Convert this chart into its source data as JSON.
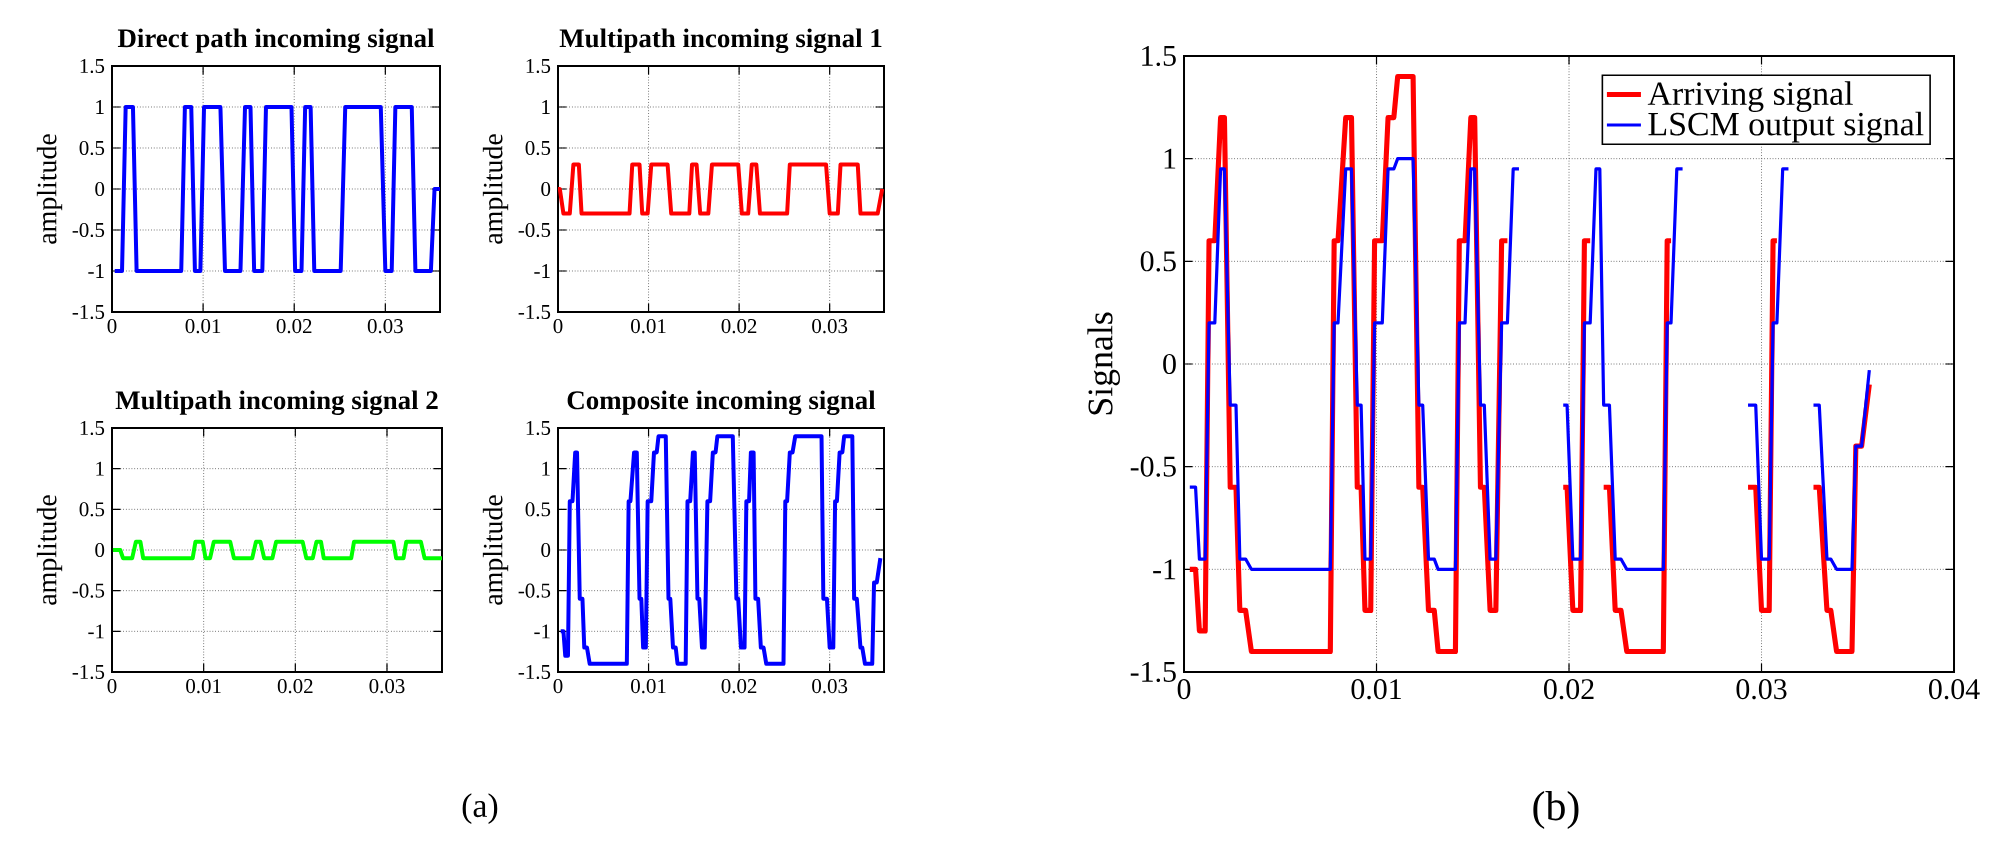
{
  "chart_data": [
    {
      "type": "line",
      "title": "Direct path incoming signal",
      "ylabel": "amplitude",
      "xlim": [
        0,
        0.036
      ],
      "xticks": [
        0,
        0.01,
        0.02,
        0.03
      ],
      "ylim": [
        -1.5,
        1.5
      ],
      "yticks": [
        -1.5,
        -1,
        -0.5,
        0,
        0.5,
        1,
        1.5
      ],
      "grid": true,
      "series": [
        {
          "color": "#0000ff",
          "x": [
            0.0003,
            0.0011,
            0.0015,
            0.0023,
            0.0027,
            0.0076,
            0.008,
            0.0087,
            0.0091,
            0.0097,
            0.0101,
            0.0119,
            0.0124,
            0.0141,
            0.0146,
            0.0152,
            0.0156,
            0.0165,
            0.0169,
            0.0197,
            0.0201,
            0.0208,
            0.0212,
            0.0218,
            0.0222,
            0.0251,
            0.0256,
            0.0295,
            0.03,
            0.0307,
            0.0311,
            0.0329,
            0.0333,
            0.035,
            0.0354,
            0.036
          ],
          "values": [
            -1,
            -1,
            1,
            1,
            -1,
            -1,
            1,
            1,
            -1,
            -1,
            1,
            1,
            -1,
            -1,
            1,
            1,
            -1,
            -1,
            1,
            1,
            -1,
            -1,
            1,
            1,
            -1,
            -1,
            1,
            1,
            -1,
            -1,
            1,
            1,
            -1,
            -1,
            0,
            0
          ]
        }
      ]
    },
    {
      "type": "line",
      "title": "Multipath incoming signal 1",
      "ylabel": "amplitude",
      "xlim": [
        0,
        0.036
      ],
      "xticks": [
        0,
        0.01,
        0.02,
        0.03
      ],
      "ylim": [
        -1.5,
        1.5
      ],
      "yticks": [
        -1.5,
        -1,
        -0.5,
        0,
        0.5,
        1,
        1.5
      ],
      "grid": true,
      "series": [
        {
          "color": "#ff0000",
          "x": [
            0,
            0.0002,
            0.0006,
            0.0013,
            0.0017,
            0.0023,
            0.0026,
            0.0079,
            0.0082,
            0.009,
            0.0093,
            0.0099,
            0.0103,
            0.0121,
            0.0125,
            0.0145,
            0.0148,
            0.0153,
            0.0157,
            0.0166,
            0.017,
            0.0199,
            0.0203,
            0.021,
            0.0214,
            0.0219,
            0.0223,
            0.0253,
            0.0256,
            0.0296,
            0.03,
            0.0309,
            0.0312,
            0.0331,
            0.0334,
            0.0353,
            0.0358
          ],
          "values": [
            0,
            0,
            -0.3,
            -0.3,
            0.3,
            0.3,
            -0.3,
            -0.3,
            0.3,
            0.3,
            -0.3,
            -0.3,
            0.3,
            0.3,
            -0.3,
            -0.3,
            0.3,
            0.3,
            -0.3,
            -0.3,
            0.3,
            0.3,
            -0.3,
            -0.3,
            0.3,
            0.3,
            -0.3,
            -0.3,
            0.3,
            0.3,
            -0.3,
            -0.3,
            0.3,
            0.3,
            -0.3,
            -0.3,
            0
          ]
        }
      ]
    },
    {
      "type": "line",
      "title": "Multipath incoming signal 2",
      "ylabel": "amplitude",
      "xlim": [
        0,
        0.036
      ],
      "xticks": [
        0,
        0.01,
        0.02,
        0.03
      ],
      "ylim": [
        -1.5,
        1.5
      ],
      "yticks": [
        -1.5,
        -1,
        -0.5,
        0,
        0.5,
        1,
        1.5
      ],
      "grid": true,
      "annotations": [
        "(a)"
      ],
      "series": [
        {
          "color": "#00ff00",
          "x": [
            0.0001,
            0.0009,
            0.0012,
            0.0022,
            0.0026,
            0.0031,
            0.0034,
            0.0088,
            0.0091,
            0.0099,
            0.0102,
            0.0107,
            0.0111,
            0.0129,
            0.0133,
            0.0153,
            0.0157,
            0.0162,
            0.0166,
            0.0175,
            0.0179,
            0.0208,
            0.0212,
            0.0219,
            0.0223,
            0.0228,
            0.0231,
            0.0261,
            0.0264,
            0.0307,
            0.031,
            0.0318,
            0.0321,
            0.0337,
            0.0341,
            0.036
          ],
          "values": [
            0,
            0,
            -0.1,
            -0.1,
            0.1,
            0.1,
            -0.1,
            -0.1,
            0.1,
            0.1,
            -0.1,
            -0.1,
            0.1,
            0.1,
            -0.1,
            -0.1,
            0.1,
            0.1,
            -0.1,
            -0.1,
            0.1,
            0.1,
            -0.1,
            -0.1,
            0.1,
            0.1,
            -0.1,
            -0.1,
            0.1,
            0.1,
            -0.1,
            -0.1,
            0.1,
            0.1,
            -0.1,
            -0.1
          ]
        }
      ]
    },
    {
      "type": "line",
      "title": "Composite incoming signal",
      "ylabel": "amplitude",
      "xlim": [
        0,
        0.036
      ],
      "xticks": [
        0,
        0.01,
        0.02,
        0.03
      ],
      "ylim": [
        -1.5,
        1.5
      ],
      "yticks": [
        -1.5,
        -1,
        -0.5,
        0,
        0.5,
        1,
        1.5
      ],
      "grid": true,
      "series": [
        {
          "color": "#0000ff",
          "x": [
            0.0003,
            0.0006,
            0.0008,
            0.0011,
            0.0013,
            0.0016,
            0.0019,
            0.0021,
            0.0024,
            0.0027,
            0.0029,
            0.0032,
            0.0035,
            0.0076,
            0.0078,
            0.008,
            0.0084,
            0.0087,
            0.009,
            0.0092,
            0.0094,
            0.0097,
            0.0099,
            0.0103,
            0.0106,
            0.0109,
            0.0111,
            0.0119,
            0.0122,
            0.0124,
            0.0127,
            0.013,
            0.0132,
            0.0141,
            0.0143,
            0.0146,
            0.0149,
            0.0151,
            0.0154,
            0.0156,
            0.0159,
            0.0162,
            0.0165,
            0.0168,
            0.0171,
            0.0174,
            0.0176,
            0.0193,
            0.0197,
            0.0199,
            0.0202,
            0.0206,
            0.0208,
            0.0211,
            0.0213,
            0.0216,
            0.0218,
            0.0221,
            0.0224,
            0.0227,
            0.023,
            0.0249,
            0.0251,
            0.0253,
            0.0256,
            0.0259,
            0.0262,
            0.0291,
            0.0293,
            0.0297,
            0.03,
            0.0304,
            0.0306,
            0.0308,
            0.0311,
            0.0314,
            0.0316,
            0.0325,
            0.0327,
            0.033,
            0.0334,
            0.0336,
            0.0339,
            0.0347,
            0.0349,
            0.0352,
            0.0356
          ],
          "values": [
            -1,
            -1,
            -1.3,
            -1.3,
            0.6,
            0.6,
            1.2,
            1.2,
            -0.6,
            -0.6,
            -1.2,
            -1.2,
            -1.4,
            -1.4,
            0.6,
            0.6,
            1.2,
            1.2,
            -0.6,
            -0.6,
            -1.2,
            -1.2,
            0.6,
            0.6,
            1.2,
            1.2,
            1.4,
            1.4,
            -0.6,
            -0.6,
            -1.2,
            -1.2,
            -1.4,
            -1.4,
            0.6,
            0.6,
            1.2,
            1.2,
            -0.6,
            -0.6,
            -1.2,
            -1.2,
            0.6,
            0.6,
            1.2,
            1.2,
            1.4,
            1.4,
            -0.6,
            -0.6,
            -1.2,
            -1.2,
            0.6,
            0.6,
            1.2,
            1.2,
            -0.6,
            -0.6,
            -1.2,
            -1.2,
            -1.4,
            -1.4,
            0.6,
            0.6,
            1.2,
            1.2,
            1.4,
            1.4,
            -0.6,
            -0.6,
            -1.2,
            -1.2,
            0.6,
            0.6,
            1.2,
            1.2,
            1.4,
            1.4,
            -0.6,
            -0.6,
            -1.2,
            -1.2,
            -1.4,
            -1.4,
            -0.4,
            -0.4,
            -0.1
          ]
        }
      ]
    },
    {
      "type": "line",
      "ylabel": "Signals",
      "xlim": [
        0,
        0.04
      ],
      "xticks": [
        0,
        0.01,
        0.02,
        0.03,
        0.04
      ],
      "ylim": [
        -1.5,
        1.5
      ],
      "yticks": [
        -1.5,
        -1,
        -0.5,
        0,
        0.5,
        1,
        1.5
      ],
      "grid": true,
      "legend": "top right",
      "annotations": [
        "(b)"
      ],
      "series": [
        {
          "name": "Arriving signal",
          "color": "#ff0000",
          "x": [
            0.0003,
            0.0006,
            0.0008,
            0.0011,
            0.0013,
            0.0016,
            0.0019,
            0.0021,
            0.0024,
            0.0027,
            0.0029,
            0.0032,
            0.0035,
            0.0076,
            0.0078,
            0.008,
            0.0084,
            0.0087,
            0.009,
            0.0092,
            0.0094,
            0.0097,
            0.0099,
            0.0103,
            0.0106,
            0.0109,
            0.0111,
            0.0119,
            0.0122,
            0.0124,
            0.0127,
            0.013,
            0.0132,
            0.0141,
            0.0143,
            0.0146,
            0.0149,
            0.0151,
            0.0154,
            0.0156,
            0.0159,
            0.0162,
            0.0165,
            0.0168,
            0.018,
            0.0197,
            0.0199,
            0.0202,
            0.0206,
            0.0208,
            0.0211,
            0.0214,
            0.0218,
            0.0221,
            0.0224,
            0.0227,
            0.023,
            0.0249,
            0.0251,
            0.0253,
            0.027,
            0.0293,
            0.0297,
            0.03,
            0.0304,
            0.0306,
            0.0308,
            0.0315,
            0.0327,
            0.033,
            0.0334,
            0.0336,
            0.0339,
            0.0347,
            0.0349,
            0.0352,
            0.0356
          ],
          "values": [
            -1,
            -1,
            -1.3,
            -1.3,
            0.6,
            0.6,
            1.2,
            1.2,
            -0.6,
            -0.6,
            -1.2,
            -1.2,
            -1.4,
            -1.4,
            0.6,
            0.6,
            1.2,
            1.2,
            -0.6,
            -0.6,
            -1.2,
            -1.2,
            0.6,
            0.6,
            1.2,
            1.2,
            1.4,
            1.4,
            -0.6,
            -0.6,
            -1.2,
            -1.2,
            -1.4,
            -1.4,
            0.6,
            0.6,
            1.2,
            1.2,
            -0.6,
            -0.6,
            -1.2,
            -1.2,
            0.6,
            0.6,
            null,
            -0.6,
            -0.6,
            -1.2,
            -1.2,
            0.6,
            0.6,
            null,
            -0.6,
            -0.6,
            -1.2,
            -1.2,
            -1.4,
            -1.4,
            0.6,
            0.6,
            null,
            -0.6,
            -0.6,
            -1.2,
            -1.2,
            0.6,
            0.6,
            null,
            -0.6,
            -0.6,
            -1.2,
            -1.2,
            -1.4,
            -1.4,
            -0.4,
            -0.4,
            -0.1
          ]
        },
        {
          "name": "LSCM output signal",
          "color": "#0000ff",
          "x": [
            0.0003,
            0.0006,
            0.0008,
            0.0011,
            0.0013,
            0.0016,
            0.0019,
            0.0021,
            0.0024,
            0.0027,
            0.0029,
            0.0032,
            0.0035,
            0.0076,
            0.0078,
            0.008,
            0.0084,
            0.0087,
            0.009,
            0.0092,
            0.0094,
            0.0097,
            0.0099,
            0.0103,
            0.0106,
            0.0109,
            0.0111,
            0.0119,
            0.0122,
            0.0124,
            0.0127,
            0.013,
            0.0132,
            0.0141,
            0.0143,
            0.0146,
            0.0149,
            0.0151,
            0.0154,
            0.0156,
            0.0159,
            0.0162,
            0.0165,
            0.0168,
            0.0171,
            0.0174,
            0.0185,
            0.0197,
            0.0199,
            0.0202,
            0.0206,
            0.0208,
            0.0211,
            0.0214,
            0.0216,
            0.0218,
            0.0221,
            0.0224,
            0.0227,
            0.023,
            0.0249,
            0.0251,
            0.0253,
            0.0256,
            0.0259,
            0.0275,
            0.0293,
            0.0297,
            0.03,
            0.0304,
            0.0306,
            0.0308,
            0.0311,
            0.0314,
            0.032,
            0.0327,
            0.033,
            0.0334,
            0.0336,
            0.0339,
            0.0347,
            0.0349,
            0.0352,
            0.0356
          ],
          "values": [
            -0.6,
            -0.6,
            -0.95,
            -0.95,
            0.2,
            0.2,
            0.95,
            0.95,
            -0.2,
            -0.2,
            -0.95,
            -0.95,
            -1,
            -1,
            0.2,
            0.2,
            0.95,
            0.95,
            -0.2,
            -0.2,
            -0.95,
            -0.95,
            0.2,
            0.2,
            0.95,
            0.95,
            1,
            1,
            -0.2,
            -0.2,
            -0.95,
            -0.95,
            -1,
            -1,
            0.2,
            0.2,
            0.95,
            0.95,
            -0.2,
            -0.2,
            -0.95,
            -0.95,
            0.2,
            0.2,
            0.95,
            0.95,
            null,
            -0.2,
            -0.2,
            -0.95,
            -0.95,
            0.2,
            0.2,
            0.95,
            0.95,
            -0.2,
            -0.2,
            -0.95,
            -0.95,
            -1,
            -1,
            0.2,
            0.2,
            0.95,
            0.95,
            null,
            -0.2,
            -0.2,
            -0.95,
            -0.95,
            0.2,
            0.2,
            0.95,
            0.95,
            null,
            -0.2,
            -0.2,
            -0.95,
            -0.95,
            -1,
            -1,
            -0.4,
            -0.4,
            -0.03
          ]
        }
      ]
    }
  ]
}
